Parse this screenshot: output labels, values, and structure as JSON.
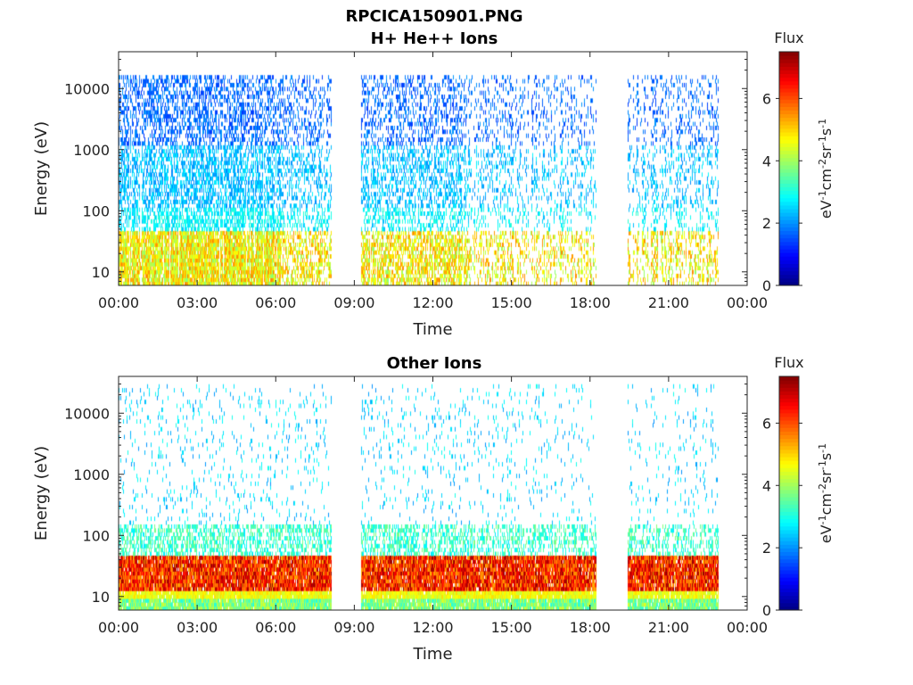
{
  "figure": {
    "title": "RPCICA150901.PNG"
  },
  "chart_data": [
    {
      "type": "heatmap",
      "title": "H+ He++ Ions",
      "xlabel": "Time",
      "ylabel": "Energy (eV)",
      "x_ticks": [
        "00:00",
        "03:00",
        "06:00",
        "09:00",
        "12:00",
        "15:00",
        "18:00",
        "21:00",
        "00:00"
      ],
      "x_range_hours": [
        0,
        24
      ],
      "y_scale": "log",
      "y_ticks": [
        10,
        100,
        1000,
        10000
      ],
      "y_tick_labels": [
        "10",
        "100",
        "1000",
        "10000"
      ],
      "y_range": [
        6,
        40000
      ],
      "colorbar": {
        "title": "Flux",
        "label": "eV-1cm-2sr-1s-1",
        "ticks": [
          0,
          2,
          4,
          6
        ],
        "tick_labels": [
          "0",
          "2",
          "4",
          "6"
        ],
        "range": [
          0,
          7.5
        ],
        "colormap": "jet"
      },
      "data_gaps_hours": [
        [
          8.15,
          9.25
        ],
        [
          18.25,
          19.45
        ]
      ],
      "data_end_hour": 22.9,
      "pattern": "ion population: peak ~5 at 20-40 eV, ~2-3 at 100-1000 eV, ~1.5 at 10000 eV"
    },
    {
      "type": "heatmap",
      "title": "Other Ions",
      "xlabel": "Time",
      "ylabel": "Energy (eV)",
      "x_ticks": [
        "00:00",
        "03:00",
        "06:00",
        "09:00",
        "12:00",
        "15:00",
        "18:00",
        "21:00",
        "00:00"
      ],
      "x_range_hours": [
        0,
        24
      ],
      "y_scale": "log",
      "y_ticks": [
        10,
        100,
        1000,
        10000
      ],
      "y_tick_labels": [
        "10",
        "100",
        "1000",
        "10000"
      ],
      "y_range": [
        6,
        40000
      ],
      "colorbar": {
        "title": "Flux",
        "label": "eV-1cm-2sr-1s-1",
        "ticks": [
          0,
          2,
          4,
          6
        ],
        "tick_labels": [
          "0",
          "2",
          "4",
          "6"
        ],
        "range": [
          0,
          7.5
        ],
        "colormap": "jet"
      },
      "data_gaps_hours": [
        [
          8.15,
          9.25
        ],
        [
          18.25,
          19.45
        ]
      ],
      "data_end_hour": 22.9,
      "pattern": "intense band ~6-7 at 15-40 eV, sparse ~2-3 above 100 eV"
    }
  ]
}
